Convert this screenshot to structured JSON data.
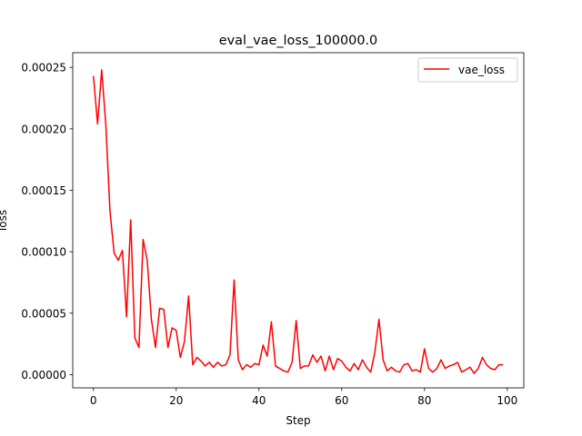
{
  "chart_data": {
    "type": "line",
    "title": "eval_vae_loss_100000.0",
    "xlabel": "Step",
    "ylabel": "loss",
    "xlim": [
      -5,
      104
    ],
    "ylim": [
      -1.08e-05,
      0.000262
    ],
    "xticks": [
      0,
      20,
      40,
      60,
      80,
      100
    ],
    "yticks": [
      0,
      5e-05,
      0.0001,
      0.00015,
      0.0002,
      0.00025
    ],
    "ytick_labels": [
      "0.00000",
      "0.00005",
      "0.00010",
      "0.00015",
      "0.00020",
      "0.00025"
    ],
    "grid": false,
    "legend": {
      "position": "upper right",
      "entries": [
        "vae_loss"
      ]
    },
    "series": [
      {
        "name": "vae_loss",
        "color": "#ff0000",
        "x": [
          0,
          1,
          2,
          3,
          4,
          5,
          6,
          7,
          8,
          9,
          10,
          11,
          12,
          13,
          14,
          15,
          16,
          17,
          18,
          19,
          20,
          21,
          22,
          23,
          24,
          25,
          26,
          27,
          28,
          29,
          30,
          31,
          32,
          33,
          34,
          35,
          36,
          37,
          38,
          39,
          40,
          41,
          42,
          43,
          44,
          45,
          46,
          47,
          48,
          49,
          50,
          51,
          52,
          53,
          54,
          55,
          56,
          57,
          58,
          59,
          60,
          61,
          62,
          63,
          64,
          65,
          66,
          67,
          68,
          69,
          70,
          71,
          72,
          73,
          74,
          75,
          76,
          77,
          78,
          79,
          80,
          81,
          82,
          83,
          84,
          85,
          86,
          87,
          88,
          89,
          90,
          91,
          92,
          93,
          94,
          95,
          96,
          97,
          98,
          99
        ],
        "values": [
          0.000243,
          0.000204,
          0.000248,
          0.000203,
          0.000133,
          9.9e-05,
          9.3e-05,
          0.000101,
          4.7e-05,
          0.000126,
          3e-05,
          2.2e-05,
          0.00011,
          9.3e-05,
          4.5e-05,
          2.2e-05,
          5.4e-05,
          5.3e-05,
          2.2e-05,
          3.8e-05,
          3.6e-05,
          1.4e-05,
          2.7e-05,
          6.4e-05,
          8e-06,
          1.4e-05,
          1.1e-05,
          7e-06,
          1e-05,
          6e-06,
          1e-05,
          7e-06,
          8e-06,
          1.6e-05,
          7.7e-05,
          1.2e-05,
          4e-06,
          8e-06,
          6e-06,
          9e-06,
          8e-06,
          2.4e-05,
          1.5e-05,
          4.3e-05,
          7e-06,
          5e-06,
          3e-06,
          2e-06,
          1e-05,
          4.4e-05,
          5e-06,
          7e-06,
          7e-06,
          1.6e-05,
          1e-05,
          1.5e-05,
          3e-06,
          1.5e-05,
          4e-06,
          1.3e-05,
          1.1e-05,
          6e-06,
          3e-06,
          9e-06,
          4e-06,
          1.2e-05,
          6e-06,
          2e-06,
          1.8e-05,
          4.5e-05,
          1.2e-05,
          3e-06,
          6e-06,
          3e-06,
          2e-06,
          8e-06,
          9e-06,
          3e-06,
          4e-06,
          2e-06,
          2.1e-05,
          5e-06,
          2e-06,
          5e-06,
          1.2e-05,
          5e-06,
          7e-06,
          8e-06,
          1e-05,
          2e-06,
          4e-06,
          6e-06,
          1e-06,
          5e-06,
          1.4e-05,
          8e-06,
          5e-06,
          4e-06,
          8e-06,
          8e-06
        ]
      }
    ]
  }
}
